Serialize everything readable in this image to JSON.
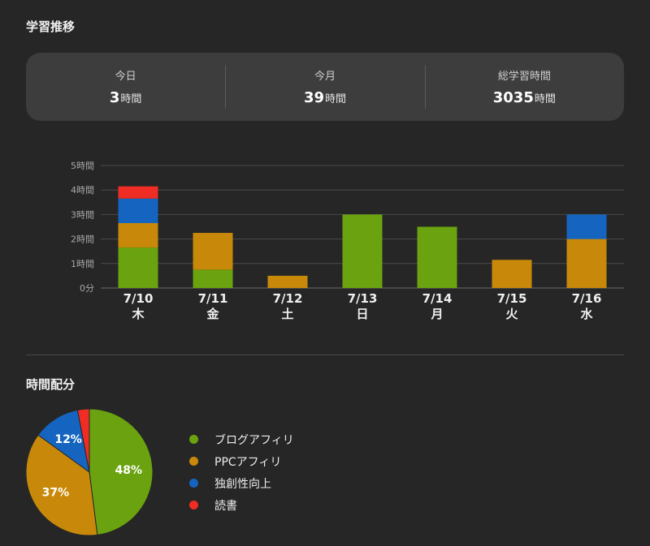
{
  "headings": {
    "trend": "学習推移",
    "distribution": "時間配分"
  },
  "summary": [
    {
      "label": "今日",
      "value": "3",
      "unit": "時間"
    },
    {
      "label": "今月",
      "value": "39",
      "unit": "時間"
    },
    {
      "label": "総学習時間",
      "value": "3035",
      "unit": "時間"
    }
  ],
  "colors": {
    "blog": "#6aa30f",
    "ppc": "#c8890a",
    "creativity": "#1565c0",
    "reading": "#ef2d24"
  },
  "chart_data": [
    {
      "type": "bar",
      "stacked": true,
      "categories": [
        "7/10",
        "7/11",
        "7/12",
        "7/13",
        "7/14",
        "7/15",
        "7/16"
      ],
      "category_sublabels": [
        "木",
        "金",
        "土",
        "日",
        "月",
        "火",
        "水"
      ],
      "y_tick_labels": [
        "0分",
        "1時間",
        "2時間",
        "3時間",
        "4時間",
        "5時間"
      ],
      "ylim": [
        0,
        5
      ],
      "grid": true,
      "series": [
        {
          "name": "ブログアフィリ",
          "color": "#6aa30f",
          "values": [
            1.65,
            0.75,
            0,
            3.0,
            2.5,
            0,
            0
          ]
        },
        {
          "name": "PPCアフィリ",
          "color": "#c8890a",
          "values": [
            1.0,
            1.5,
            0.5,
            0,
            0,
            1.15,
            2.0
          ]
        },
        {
          "name": "独創性向上",
          "color": "#1565c0",
          "values": [
            1.0,
            0,
            0,
            0,
            0,
            0,
            1.0
          ]
        },
        {
          "name": "読書",
          "color": "#ef2d24",
          "values": [
            0.5,
            0,
            0,
            0,
            0,
            0,
            0
          ]
        }
      ]
    },
    {
      "type": "pie",
      "slices": [
        {
          "name": "ブログアフィリ",
          "value": 48,
          "label": "48%",
          "color": "#6aa30f"
        },
        {
          "name": "PPCアフィリ",
          "value": 37,
          "label": "37%",
          "color": "#c8890a"
        },
        {
          "name": "独創性向上",
          "value": 12,
          "label": "12%",
          "color": "#1565c0"
        },
        {
          "name": "読書",
          "value": 3,
          "label": "",
          "color": "#ef2d24"
        }
      ],
      "legend": "right"
    }
  ]
}
